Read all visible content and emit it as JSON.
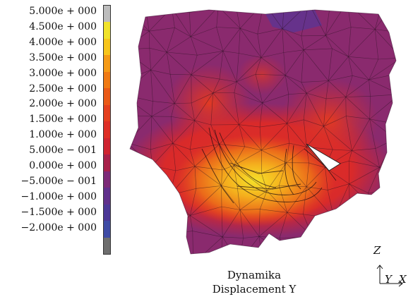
{
  "legend": {
    "labels": [
      "5.000e + 000",
      "4.500e + 000",
      "4.000e + 000",
      "3.500e + 000",
      "3.000e + 000",
      "2.500e + 000",
      "2.000e + 000",
      "1.500e + 000",
      "1.000e + 000",
      "5.000e − 001",
      "0.000e + 000",
      "−5.000e − 001",
      "−1.000e + 000",
      "−1.500e + 000",
      "−2.000e + 000"
    ],
    "colors": [
      "#bdbdbd",
      "#f0e22a",
      "#f7c51b",
      "#f59a16",
      "#f07a14",
      "#ea5a18",
      "#e4401f",
      "#de2f26",
      "#cf2430",
      "#a8214a",
      "#7d2a78",
      "#61308c",
      "#4c3897",
      "#3f4ba5",
      "#6e6e6e"
    ]
  },
  "caption": {
    "line1": "Dynamika",
    "line2": "Displacement Y"
  },
  "axes": {
    "z": "Z",
    "y": "Y",
    "x": "X"
  }
}
